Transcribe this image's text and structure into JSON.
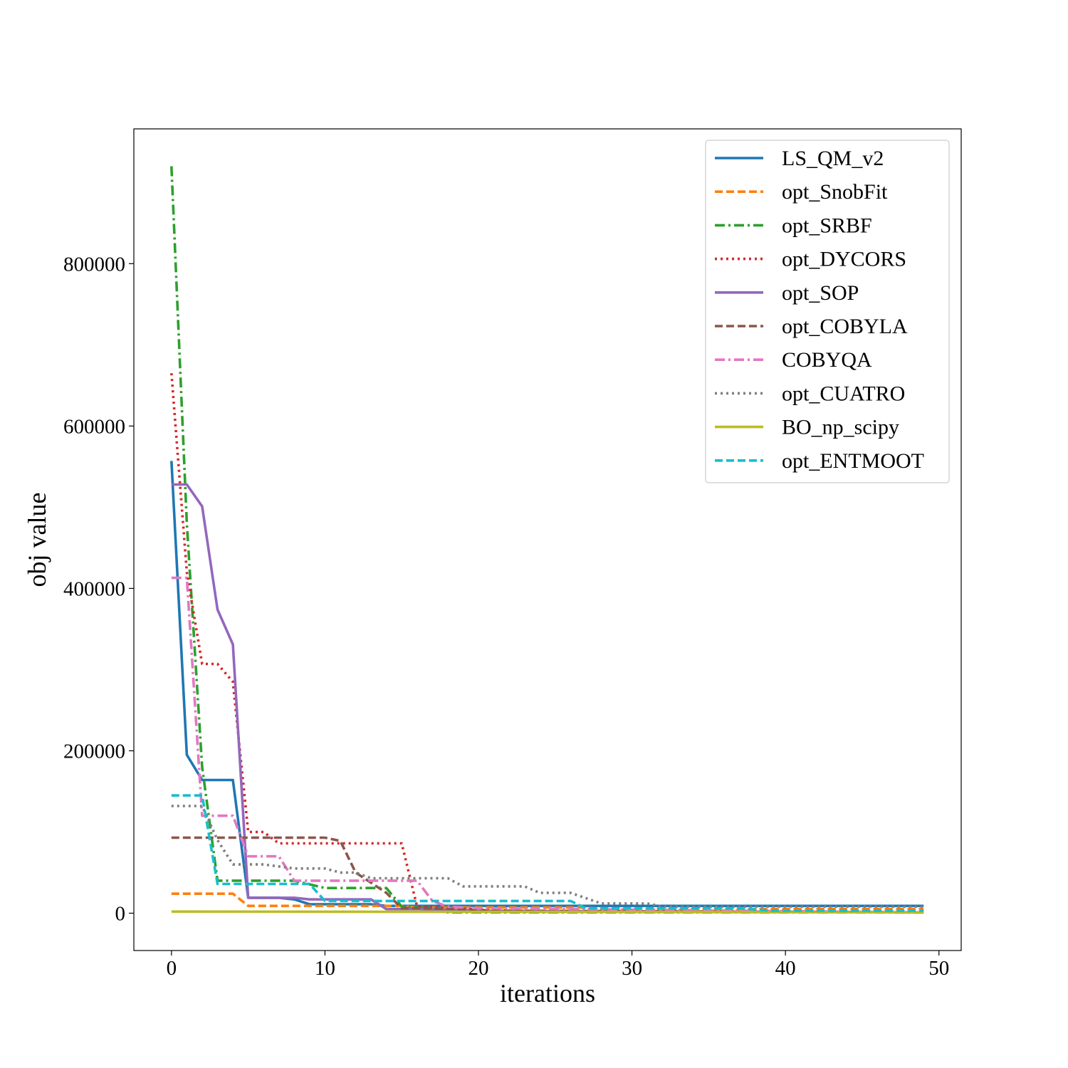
{
  "chart_data": {
    "type": "line",
    "title": "",
    "xlabel": "iterations",
    "ylabel": "obj value",
    "xlim": [
      -2.45,
      51.45
    ],
    "ylim": [
      -46000,
      966000
    ],
    "xticks": [
      0,
      10,
      20,
      30,
      40,
      50
    ],
    "yticks": [
      0,
      200000,
      400000,
      600000,
      800000
    ],
    "grid": false,
    "legend_position": "top-right",
    "series": [
      {
        "name": "LS_QM_v2",
        "color": "#1f77b4",
        "dash": "solid",
        "points": [
          [
            0,
            557000
          ],
          [
            1,
            195000
          ],
          [
            2,
            164000
          ],
          [
            3,
            164000
          ],
          [
            4,
            164000
          ],
          [
            5,
            19000
          ],
          [
            6,
            19000
          ],
          [
            7,
            19000
          ],
          [
            8,
            17000
          ],
          [
            9,
            11000
          ],
          [
            13,
            11000
          ],
          [
            14,
            9000
          ],
          [
            20,
            9000
          ],
          [
            49,
            9000
          ]
        ]
      },
      {
        "name": "opt_SnobFit",
        "color": "#ff7f0e",
        "dash": "dashed",
        "points": [
          [
            0,
            24000
          ],
          [
            4,
            24000
          ],
          [
            5,
            9000
          ],
          [
            15,
            9000
          ],
          [
            16,
            7000
          ],
          [
            27,
            7000
          ],
          [
            28,
            5000
          ],
          [
            49,
            5000
          ]
        ]
      },
      {
        "name": "opt_SRBF",
        "color": "#2ca02c",
        "dash": "dashdot",
        "points": [
          [
            0,
            920000
          ],
          [
            1,
            480000
          ],
          [
            2,
            180000
          ],
          [
            3,
            40000
          ],
          [
            8,
            40000
          ],
          [
            10,
            31000
          ],
          [
            14,
            31000
          ],
          [
            15,
            8000
          ],
          [
            17,
            6000
          ],
          [
            18,
            1000
          ],
          [
            49,
            1000
          ]
        ]
      },
      {
        "name": "opt_DYCORS",
        "color": "#d62728",
        "dash": "dotted",
        "points": [
          [
            0,
            665000
          ],
          [
            1,
            420000
          ],
          [
            2,
            307000
          ],
          [
            3,
            307000
          ],
          [
            4,
            285000
          ],
          [
            5,
            100000
          ],
          [
            6,
            100000
          ],
          [
            7,
            86000
          ],
          [
            15,
            86000
          ],
          [
            16,
            8000
          ],
          [
            22,
            3000
          ],
          [
            49,
            1000
          ]
        ]
      },
      {
        "name": "opt_SOP",
        "color": "#9467bd",
        "dash": "solid",
        "points": [
          [
            0,
            528000
          ],
          [
            1,
            528000
          ],
          [
            2,
            501000
          ],
          [
            3,
            374000
          ],
          [
            4,
            331000
          ],
          [
            5,
            19000
          ],
          [
            8,
            19000
          ],
          [
            9,
            17000
          ],
          [
            13,
            17000
          ],
          [
            14,
            5000
          ],
          [
            16,
            5000
          ],
          [
            18,
            4000
          ],
          [
            20,
            3000
          ],
          [
            30,
            2000
          ],
          [
            49,
            1000
          ]
        ]
      },
      {
        "name": "opt_COBYLA",
        "color": "#8c564b",
        "dash": "dashed",
        "points": [
          [
            0,
            93000
          ],
          [
            10,
            93000
          ],
          [
            11,
            89000
          ],
          [
            12,
            50000
          ],
          [
            14,
            25000
          ],
          [
            15,
            6000
          ],
          [
            17,
            6000
          ],
          [
            19,
            5000
          ],
          [
            21,
            3000
          ],
          [
            49,
            1000
          ]
        ]
      },
      {
        "name": "COBYQA",
        "color": "#e377c2",
        "dash": "dashdot",
        "points": [
          [
            0,
            413000
          ],
          [
            1,
            413000
          ],
          [
            2,
            120000
          ],
          [
            4,
            120000
          ],
          [
            5,
            70000
          ],
          [
            7,
            70000
          ],
          [
            8,
            40000
          ],
          [
            16,
            40000
          ],
          [
            17,
            15000
          ],
          [
            18,
            8000
          ],
          [
            20,
            6000
          ],
          [
            49,
            1000
          ]
        ]
      },
      {
        "name": "opt_CUATRO",
        "color": "#7f7f7f",
        "dash": "dotted",
        "points": [
          [
            0,
            132000
          ],
          [
            2,
            132000
          ],
          [
            3,
            90000
          ],
          [
            4,
            60000
          ],
          [
            6,
            60000
          ],
          [
            8,
            55000
          ],
          [
            10,
            55000
          ],
          [
            11,
            50000
          ],
          [
            12,
            50000
          ],
          [
            13,
            43000
          ],
          [
            18,
            43000
          ],
          [
            19,
            33000
          ],
          [
            23,
            33000
          ],
          [
            24,
            25000
          ],
          [
            26,
            25000
          ],
          [
            28,
            12000
          ],
          [
            31,
            12000
          ],
          [
            32,
            8000
          ],
          [
            49,
            8000
          ]
        ]
      },
      {
        "name": "BO_np_scipy",
        "color": "#bcbd22",
        "dash": "solid",
        "points": [
          [
            0,
            2000
          ],
          [
            49,
            1000
          ]
        ]
      },
      {
        "name": "opt_ENTMOOT",
        "color": "#17becf",
        "dash": "dashed",
        "points": [
          [
            0,
            145000
          ],
          [
            2,
            145000
          ],
          [
            3,
            36000
          ],
          [
            9,
            36000
          ],
          [
            10,
            15000
          ],
          [
            26,
            15000
          ],
          [
            27,
            6000
          ],
          [
            37,
            6000
          ],
          [
            39,
            3000
          ],
          [
            49,
            3000
          ]
        ]
      }
    ]
  }
}
